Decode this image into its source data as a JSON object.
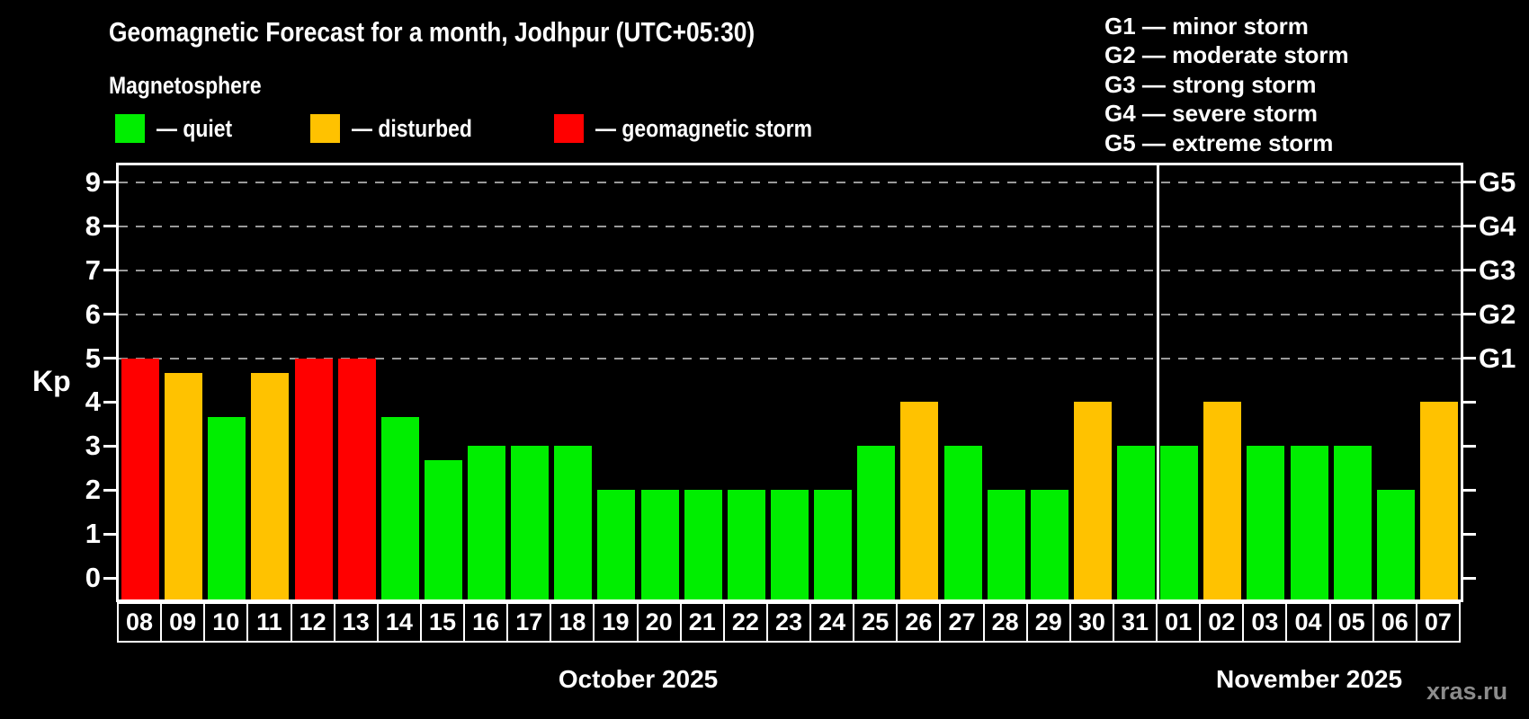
{
  "subtitle": "Magnetosphere",
  "legend": [
    {
      "id": "quiet",
      "label": "— quiet"
    },
    {
      "id": "disturbed",
      "label": "— disturbed"
    },
    {
      "id": "storm",
      "label": "— geomagnetic storm"
    }
  ],
  "g_legend": [
    "G1 — minor storm",
    "G2 — moderate storm",
    "G3 — strong storm",
    "G4 — severe storm",
    "G5 — extreme storm"
  ],
  "watermark": "xras.ru",
  "colors": {
    "quiet": "#00ee00",
    "disturbed": "#ffc200",
    "storm": "#ff0000",
    "grid": "#9a9a9a",
    "axis": "#ffffff",
    "watermark": "#8c8c8c"
  },
  "chart_data": {
    "type": "bar",
    "title": "Geomagnetic Forecast for a month, Jodhpur (UTC+05:30)",
    "ylabel": "Kp",
    "ylim": [
      -0.5,
      9.4
    ],
    "y_ticks": [
      0,
      1,
      2,
      3,
      4,
      5,
      6,
      7,
      8,
      9
    ],
    "grid": "dashed horizontal lines at Kp 5-9",
    "legend_position": "top-left",
    "right_axis": {
      "labels": [
        "G1",
        "G2",
        "G3",
        "G4",
        "G5"
      ],
      "levels": [
        5,
        6,
        7,
        8,
        9
      ]
    },
    "months": [
      {
        "label": "October 2025",
        "days": [
          {
            "d": "08",
            "kp": 5.0,
            "state": "storm"
          },
          {
            "d": "09",
            "kp": 4.67,
            "state": "disturbed"
          },
          {
            "d": "10",
            "kp": 3.67,
            "state": "quiet"
          },
          {
            "d": "11",
            "kp": 4.67,
            "state": "disturbed"
          },
          {
            "d": "12",
            "kp": 5.0,
            "state": "storm"
          },
          {
            "d": "13",
            "kp": 5.0,
            "state": "storm"
          },
          {
            "d": "14",
            "kp": 3.67,
            "state": "quiet"
          },
          {
            "d": "15",
            "kp": 2.67,
            "state": "quiet"
          },
          {
            "d": "16",
            "kp": 3.0,
            "state": "quiet"
          },
          {
            "d": "17",
            "kp": 3.0,
            "state": "quiet"
          },
          {
            "d": "18",
            "kp": 3.0,
            "state": "quiet"
          },
          {
            "d": "19",
            "kp": 2.0,
            "state": "quiet"
          },
          {
            "d": "20",
            "kp": 2.0,
            "state": "quiet"
          },
          {
            "d": "21",
            "kp": 2.0,
            "state": "quiet"
          },
          {
            "d": "22",
            "kp": 2.0,
            "state": "quiet"
          },
          {
            "d": "23",
            "kp": 2.0,
            "state": "quiet"
          },
          {
            "d": "24",
            "kp": 2.0,
            "state": "quiet"
          },
          {
            "d": "25",
            "kp": 3.0,
            "state": "quiet"
          },
          {
            "d": "26",
            "kp": 4.0,
            "state": "disturbed"
          },
          {
            "d": "27",
            "kp": 3.0,
            "state": "quiet"
          },
          {
            "d": "28",
            "kp": 2.0,
            "state": "quiet"
          },
          {
            "d": "29",
            "kp": 2.0,
            "state": "quiet"
          },
          {
            "d": "30",
            "kp": 4.0,
            "state": "disturbed"
          },
          {
            "d": "31",
            "kp": 3.0,
            "state": "quiet"
          }
        ]
      },
      {
        "label": "November 2025",
        "days": [
          {
            "d": "01",
            "kp": 3.0,
            "state": "quiet"
          },
          {
            "d": "02",
            "kp": 4.0,
            "state": "disturbed"
          },
          {
            "d": "03",
            "kp": 3.0,
            "state": "quiet"
          },
          {
            "d": "04",
            "kp": 3.0,
            "state": "quiet"
          },
          {
            "d": "05",
            "kp": 3.0,
            "state": "quiet"
          },
          {
            "d": "06",
            "kp": 2.0,
            "state": "quiet"
          },
          {
            "d": "07",
            "kp": 4.0,
            "state": "disturbed"
          }
        ]
      }
    ]
  }
}
